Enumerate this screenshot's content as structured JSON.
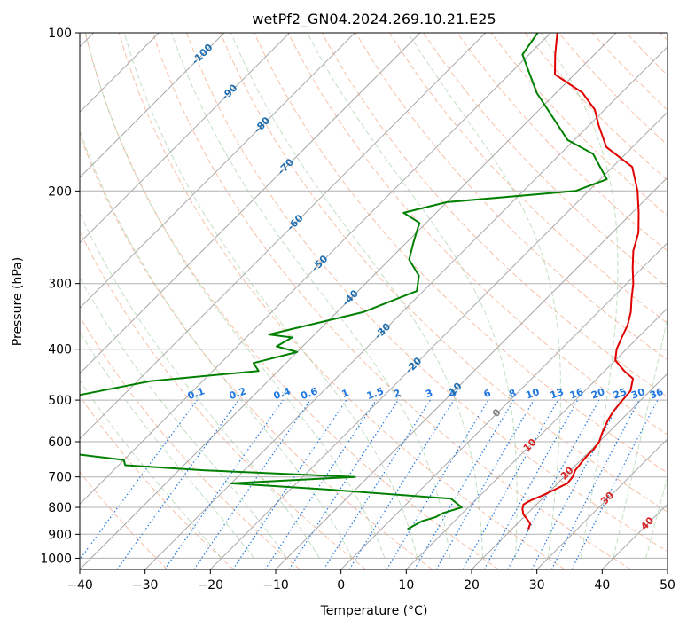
{
  "chart_data": {
    "type": "line",
    "title": "wetPf2_GN04.2024.269.10.21.E25",
    "xlabel": "Temperature (°C)",
    "ylabel": "Pressure (hPa)",
    "xlim": [
      -40,
      50
    ],
    "ylim": [
      1050,
      100
    ],
    "y_scale": "log",
    "skew": "skew-T log-p",
    "grid": true,
    "x_ticks": [
      -40,
      -30,
      -20,
      -10,
      0,
      10,
      20,
      30,
      40,
      50
    ],
    "y_ticks": [
      100,
      200,
      300,
      400,
      500,
      600,
      700,
      800,
      900,
      1000
    ],
    "colors": {
      "temperature": "#e00000",
      "dewpoint": "#008000",
      "isotherm": "#a8a8a8",
      "dry_adiabat": "#f4a582",
      "moist_adiabat": "#99cc99",
      "mixing_ratio": "#1f77e0",
      "isotherm_label_neg": "#1f6fb2",
      "isotherm_label_pos": "#d62728"
    },
    "series": [
      {
        "role": "temperature",
        "points": [
          [
            22.5,
            880
          ],
          [
            22,
            860
          ],
          [
            21,
            845
          ],
          [
            19.5,
            825
          ],
          [
            18.5,
            805
          ],
          [
            18,
            790
          ],
          [
            18.5,
            775
          ],
          [
            19.5,
            760
          ],
          [
            20.5,
            740
          ],
          [
            21.5,
            720
          ],
          [
            21.3,
            700
          ],
          [
            20.7,
            680
          ],
          [
            20.5,
            660
          ],
          [
            20.3,
            640
          ],
          [
            20.3,
            620
          ],
          [
            20,
            600
          ],
          [
            19.2,
            580
          ],
          [
            18.5,
            560
          ],
          [
            18,
            545
          ],
          [
            17.5,
            525
          ],
          [
            17.2,
            500
          ],
          [
            17,
            480
          ],
          [
            15.5,
            455
          ],
          [
            13,
            440
          ],
          [
            10,
            420
          ],
          [
            8.5,
            400
          ],
          [
            7.5,
            380
          ],
          [
            6.5,
            360
          ],
          [
            5,
            340
          ],
          [
            3,
            320
          ],
          [
            1,
            300
          ],
          [
            -1.5,
            280
          ],
          [
            -4,
            260
          ],
          [
            -6,
            240
          ],
          [
            -9,
            220
          ],
          [
            -12.5,
            200
          ],
          [
            -17,
            180
          ],
          [
            -24,
            165
          ],
          [
            -28.5,
            150
          ],
          [
            -31.5,
            140
          ],
          [
            -36,
            130
          ],
          [
            -43,
            120
          ],
          [
            -46,
            110
          ],
          [
            -49,
            100
          ]
        ]
      },
      {
        "role": "dewpoint",
        "points": [
          [
            4,
            880
          ],
          [
            4.5,
            865
          ],
          [
            5,
            850
          ],
          [
            6.5,
            835
          ],
          [
            7,
            820
          ],
          [
            9,
            800
          ],
          [
            6,
            770
          ],
          [
            -14,
            740
          ],
          [
            -30,
            720
          ],
          [
            -12,
            700
          ],
          [
            -36,
            680
          ],
          [
            -49,
            665
          ],
          [
            -50,
            650
          ],
          [
            -55,
            640
          ],
          [
            -60,
            630
          ],
          [
            -70,
            625
          ],
          [
            -70,
            500
          ],
          [
            -58,
            460
          ],
          [
            -43,
            440
          ],
          [
            -45,
            425
          ],
          [
            -40,
            405
          ],
          [
            -44,
            395
          ],
          [
            -43,
            380
          ],
          [
            -47,
            375
          ],
          [
            -36,
            340
          ],
          [
            -31,
            310
          ],
          [
            -33,
            290
          ],
          [
            -37,
            270
          ],
          [
            -39,
            250
          ],
          [
            -40,
            240
          ],
          [
            -41,
            230
          ],
          [
            -45,
            220
          ],
          [
            -40,
            210
          ],
          [
            -22,
            200
          ],
          [
            -19,
            190
          ],
          [
            -25,
            170
          ],
          [
            -31,
            160
          ],
          [
            -43,
            130
          ],
          [
            -51,
            110
          ],
          [
            -52,
            100
          ]
        ]
      }
    ],
    "isotherm_labels": [
      -100,
      -90,
      -80,
      -70,
      -60,
      -50,
      -40,
      -30,
      -20,
      -10,
      0,
      10,
      20,
      30,
      40
    ],
    "mixing_ratio_labels": [
      "0.1",
      "0.2",
      "0.4",
      "0.6",
      "1",
      "1.5",
      "2",
      "3",
      "4",
      "6",
      "8",
      "10",
      "13",
      "16",
      "20",
      "25",
      "30",
      "36"
    ]
  }
}
